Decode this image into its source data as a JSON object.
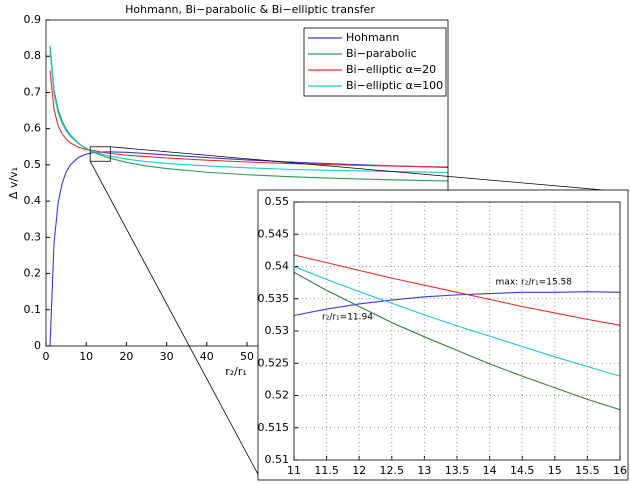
{
  "chart_data": [
    {
      "type": "line",
      "title": "Hohmann, Bi−parabolic & Bi−elliptic transfer",
      "xlabel": "r₂/r₁",
      "ylabel": "Δ v/v₁",
      "x": [
        1,
        2,
        3,
        4,
        5,
        6,
        8,
        10,
        12,
        15,
        20,
        25,
        30,
        40,
        50,
        60,
        70,
        80,
        90,
        100
      ],
      "series": [
        {
          "name": "Hohmann",
          "color": "#3a3acc",
          "values": [
            0,
            0.2845,
            0.3938,
            0.4487,
            0.48,
            0.4993,
            0.5202,
            0.5298,
            0.5342,
            0.536,
            0.5347,
            0.5313,
            0.5274,
            0.5201,
            0.5137,
            0.5083,
            0.5037,
            0.4997,
            0.4962,
            0.4931
          ]
        },
        {
          "name": "Bi−parabolic",
          "color": "#2e9a5a",
          "values": [
            0.8284,
            0.7071,
            0.6534,
            0.6213,
            0.5994,
            0.5833,
            0.5607,
            0.5452,
            0.5338,
            0.5212,
            0.5068,
            0.4971,
            0.4898,
            0.4797,
            0.4728,
            0.4677,
            0.4637,
            0.4605,
            0.4579,
            0.4556
          ]
        },
        {
          "name": "Bi−elliptic α=20",
          "color": "#e03030",
          "values": [
            0.7602,
            0.6528,
            0.6093,
            0.5857,
            0.571,
            0.5612,
            0.5491,
            0.5426,
            0.5394,
            0.5328,
            0.527,
            0.523,
            0.519,
            0.513,
            0.508,
            0.504,
            0.501,
            0.498,
            0.496,
            0.494
          ]
        },
        {
          "name": "Bi−elliptic α=100",
          "color": "#20c4c4",
          "values": [
            0.8144,
            0.696,
            0.6444,
            0.6142,
            0.594,
            0.5793,
            0.5591,
            0.5459,
            0.5361,
            0.526,
            0.516,
            0.509,
            0.504,
            0.497,
            0.492,
            0.488,
            0.485,
            0.483,
            0.481,
            0.479
          ]
        }
      ],
      "xlim": [
        0,
        100
      ],
      "xticks": [
        0,
        10,
        20,
        30,
        40,
        50
      ],
      "ylim": [
        0,
        0.9
      ],
      "yticks": [
        0,
        0.1,
        0.2,
        0.3,
        0.4,
        0.5,
        0.6,
        0.7,
        0.8,
        0.9
      ],
      "grid": false,
      "legend": "upper right"
    },
    {
      "type": "line",
      "x": [
        11,
        11.5,
        12,
        12.5,
        13,
        13.5,
        14,
        14.5,
        15,
        15.5,
        16
      ],
      "series": [
        {
          "color": "#3a3acc",
          "values": [
            0.5324,
            0.5334,
            0.5342,
            0.5348,
            0.5353,
            0.5356,
            0.5358,
            0.536,
            0.536,
            0.5361,
            0.536
          ]
        },
        {
          "color": "#3f7a4a",
          "values": [
            0.5391,
            0.5363,
            0.5338,
            0.5313,
            0.5291,
            0.527,
            0.5249,
            0.523,
            0.5212,
            0.5194,
            0.5178
          ]
        },
        {
          "color": "#e03030",
          "values": [
            0.5418,
            0.5406,
            0.5394,
            0.5382,
            0.5371,
            0.536,
            0.5349,
            0.5338,
            0.5328,
            0.5318,
            0.5309
          ]
        },
        {
          "color": "#20c4c4",
          "values": [
            0.54,
            0.538,
            0.5361,
            0.5343,
            0.5325,
            0.5308,
            0.5292,
            0.5276,
            0.526,
            0.5245,
            0.523
          ]
        }
      ],
      "annotations": [
        "max: r₂/r₁=15.58",
        "r₂/r₁=11.94"
      ],
      "xlim": [
        11,
        16
      ],
      "xticks": [
        11,
        11.5,
        12,
        12.5,
        13,
        13.5,
        14,
        14.5,
        15,
        15.5,
        16
      ],
      "ylim": [
        0.51,
        0.55
      ],
      "yticks": [
        0.51,
        0.515,
        0.52,
        0.525,
        0.53,
        0.535,
        0.54,
        0.545,
        0.55
      ],
      "grid": true
    }
  ]
}
